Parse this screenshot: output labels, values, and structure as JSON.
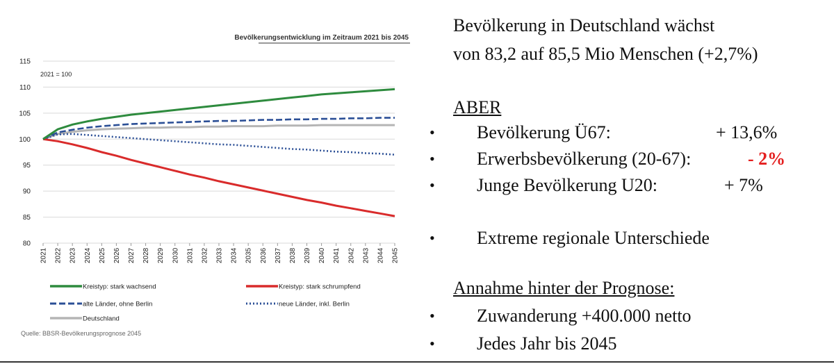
{
  "chart_data": {
    "type": "line",
    "title": "Bevölkerungsentwicklung im Zeitraum 2021 bis 2045",
    "note": "2021 = 100",
    "x": [
      2021,
      2022,
      2023,
      2024,
      2025,
      2026,
      2027,
      2028,
      2029,
      2030,
      2031,
      2032,
      2033,
      2034,
      2035,
      2036,
      2037,
      2038,
      2039,
      2040,
      2041,
      2042,
      2043,
      2044,
      2045
    ],
    "ylim": [
      80,
      115
    ],
    "yticks": [
      80,
      85,
      90,
      95,
      100,
      105,
      110,
      115
    ],
    "grid": true,
    "legend_position": "bottom",
    "series": [
      {
        "name": "Kreistyp: stark wachsend",
        "color": "#2e8b3e",
        "style": "solid",
        "values": [
          100,
          101.9,
          102.8,
          103.4,
          103.9,
          104.3,
          104.7,
          105.0,
          105.3,
          105.6,
          105.9,
          106.2,
          106.5,
          106.8,
          107.1,
          107.4,
          107.7,
          108.0,
          108.3,
          108.6,
          108.8,
          109.0,
          109.2,
          109.4,
          109.6
        ]
      },
      {
        "name": "Kreistyp: stark schrumpfend",
        "color": "#d92b2b",
        "style": "solid",
        "values": [
          100,
          99.6,
          99.0,
          98.3,
          97.5,
          96.8,
          96.0,
          95.3,
          94.6,
          93.9,
          93.2,
          92.6,
          91.9,
          91.3,
          90.7,
          90.1,
          89.5,
          88.9,
          88.3,
          87.8,
          87.2,
          86.7,
          86.2,
          85.7,
          85.2
        ]
      },
      {
        "name": "alte Länder, ohne Berlin",
        "color": "#2b4f96",
        "style": "dashed",
        "values": [
          100,
          101.3,
          101.8,
          102.2,
          102.5,
          102.7,
          102.9,
          103.0,
          103.1,
          103.2,
          103.3,
          103.4,
          103.5,
          103.5,
          103.6,
          103.7,
          103.7,
          103.8,
          103.8,
          103.9,
          103.9,
          104.0,
          104.0,
          104.1,
          104.1
        ]
      },
      {
        "name": "neue Länder, inkl. Berlin",
        "color": "#2b4f96",
        "style": "dotted",
        "values": [
          100,
          100.9,
          101.0,
          100.8,
          100.6,
          100.4,
          100.2,
          100.0,
          99.8,
          99.6,
          99.4,
          99.2,
          99.0,
          98.9,
          98.7,
          98.5,
          98.3,
          98.1,
          98.0,
          97.8,
          97.6,
          97.5,
          97.3,
          97.2,
          97.0
        ]
      },
      {
        "name": "Deutschland",
        "color": "#b5b5b5",
        "style": "solid",
        "values": [
          100,
          101.0,
          101.4,
          101.7,
          101.9,
          102.0,
          102.1,
          102.2,
          102.2,
          102.3,
          102.3,
          102.4,
          102.4,
          102.5,
          102.5,
          102.5,
          102.6,
          102.6,
          102.6,
          102.7,
          102.7,
          102.7,
          102.7,
          102.7,
          102.7
        ]
      }
    ],
    "source": "Quelle: BBSR-Bevölkerungsprognose 2045"
  },
  "slide": {
    "headline_1": "Bevölkerung in Deutschland wächst",
    "headline_2": "von 83,2 auf 85,5 Mio Menschen (+2,7%)",
    "aber": "ABER",
    "items": [
      {
        "bullet": "•",
        "label": "Bevölkerung Ü67:",
        "value": "+ 13,6%"
      },
      {
        "bullet": "•",
        "label": "Erwerbsbevölkerung (20-67):",
        "value": "- 2%"
      },
      {
        "bullet": "•",
        "label": "Junge Bevölkerung U20:",
        "value": "+ 7%"
      }
    ],
    "regional": {
      "bullet": "•",
      "text": "Extreme regionale Unterschiede"
    },
    "assumption_title": "Annahme hinter der Prognose:",
    "assumptions": [
      {
        "bullet": "•",
        "text": "Zuwanderung +400.000 netto"
      },
      {
        "bullet": "•",
        "text": "Jedes Jahr bis 2045"
      }
    ],
    "accent_color": "#e41e1e"
  }
}
